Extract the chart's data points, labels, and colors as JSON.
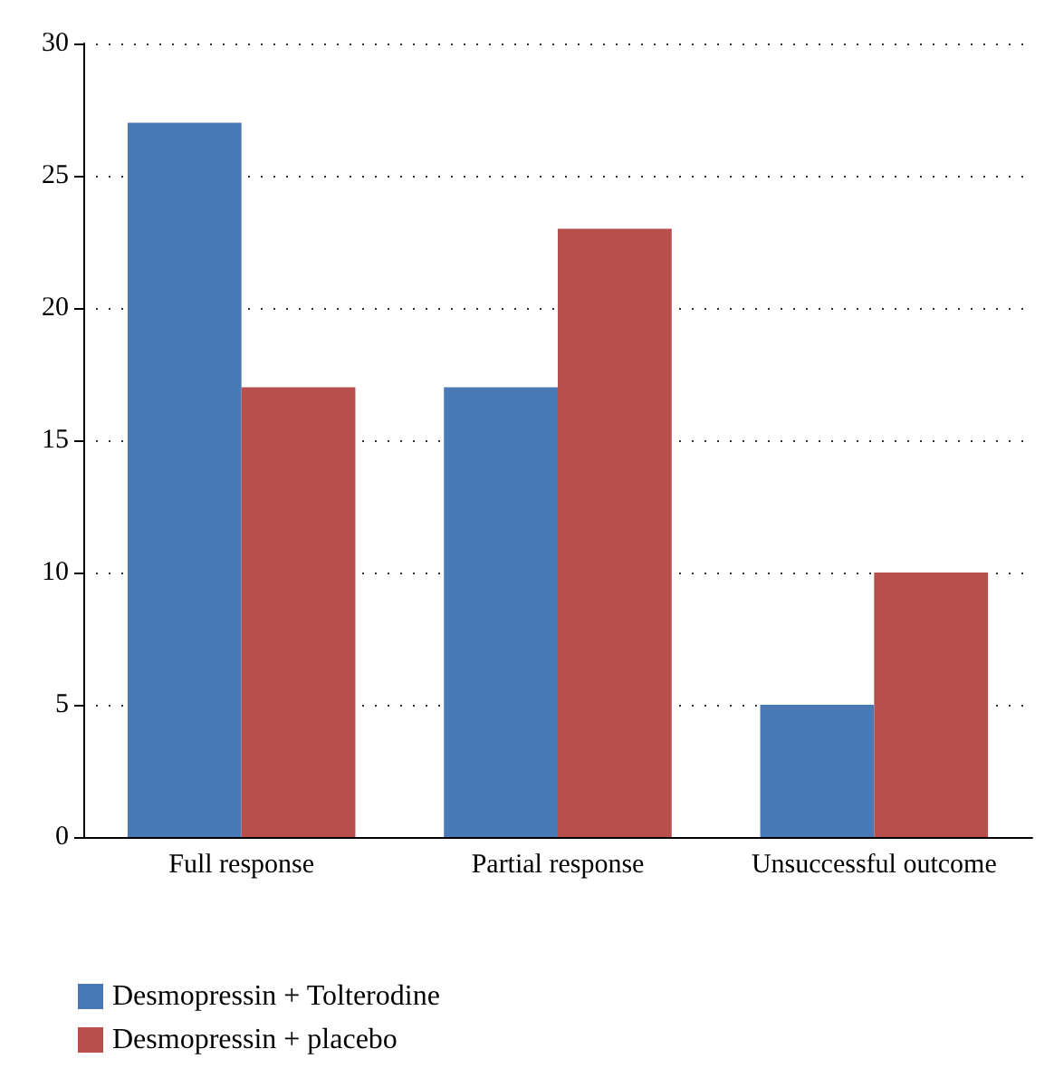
{
  "chart_data": {
    "type": "bar",
    "categories": [
      "Full response",
      "Partial response",
      "Unsuccessful outcome"
    ],
    "series": [
      {
        "name": "Desmopressin + Tolterodine",
        "color": "#4a7ab5",
        "values": [
          27,
          17,
          5
        ]
      },
      {
        "name": "Desmopressin + placebo",
        "color": "#b84f4c",
        "values": [
          17,
          23,
          10
        ]
      }
    ],
    "ylim": [
      0,
      30
    ],
    "yticks": [
      0,
      5,
      10,
      15,
      20,
      25,
      30
    ],
    "grid": "y",
    "legend": "bottom left"
  }
}
